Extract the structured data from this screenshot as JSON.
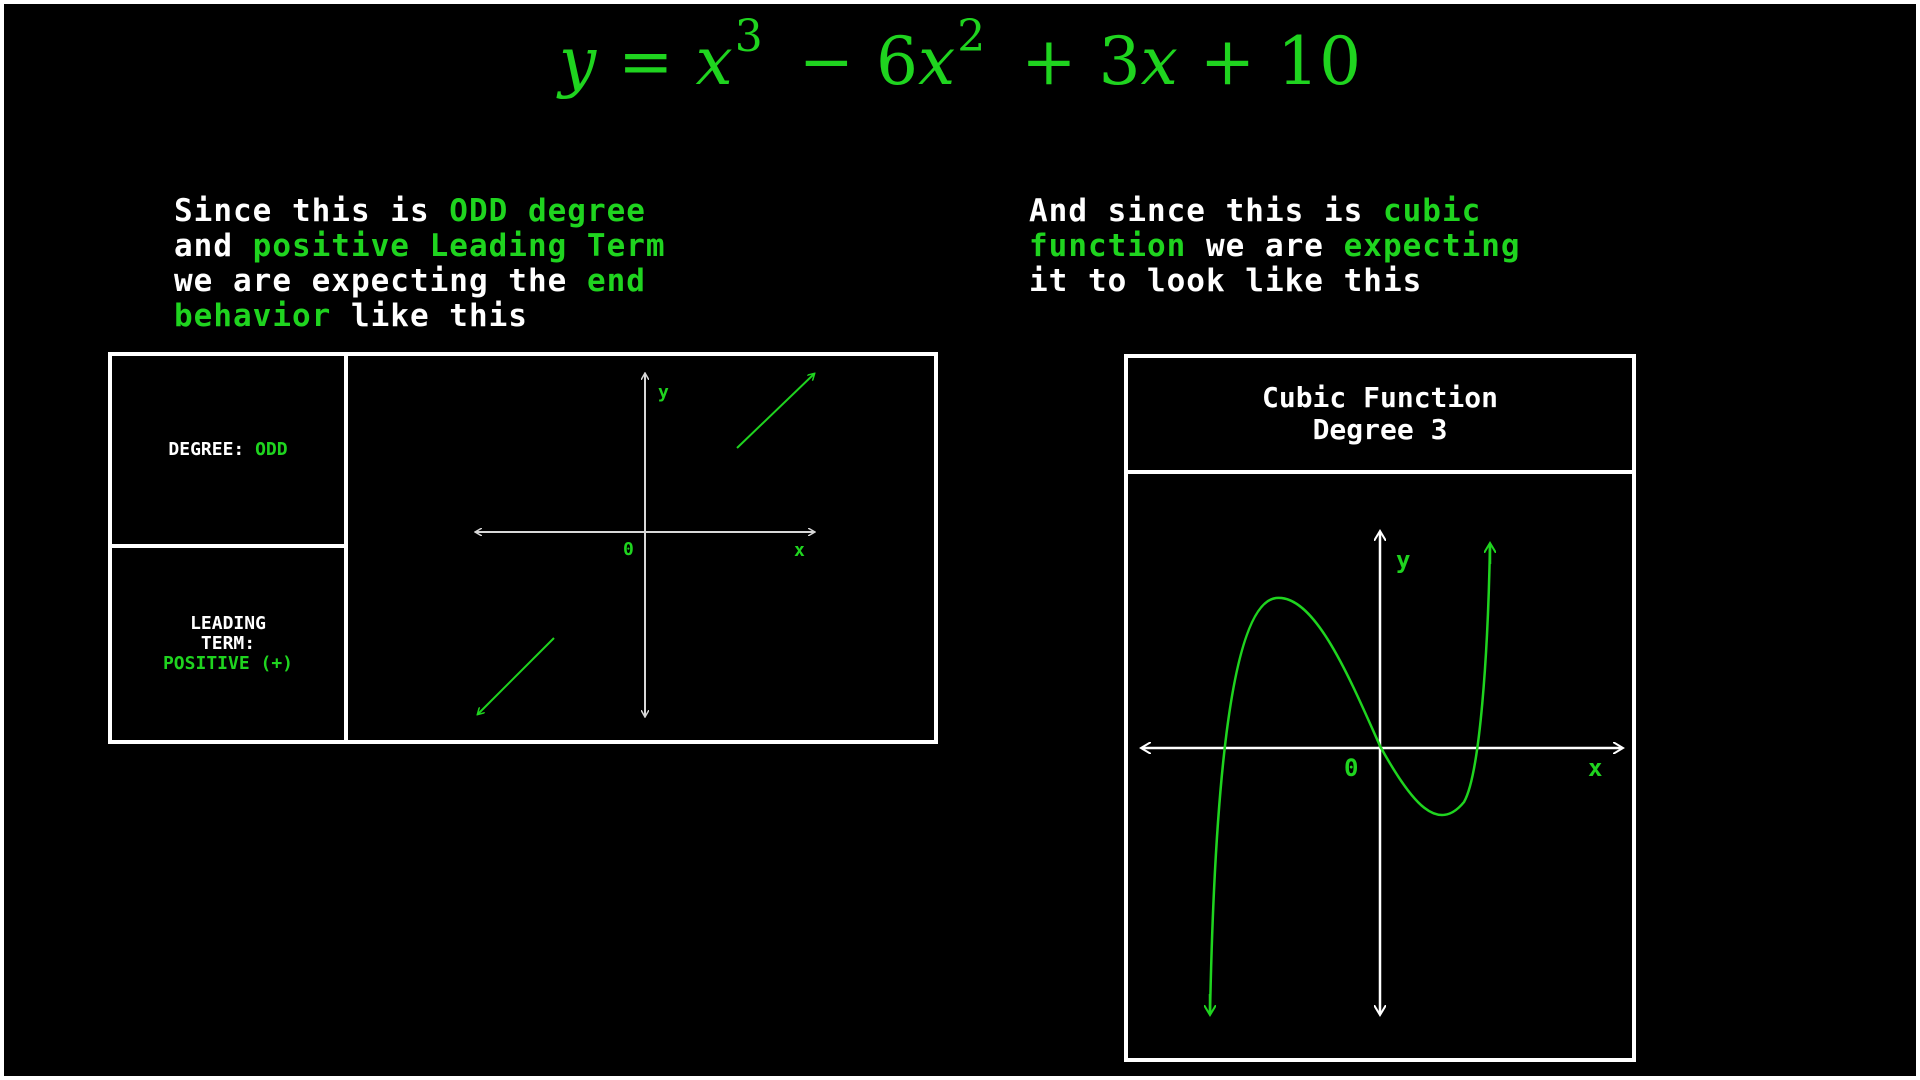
{
  "equation": {
    "y": "y",
    "eq": "=",
    "x1": "x",
    "e1": "3",
    "op1": "−",
    "c2": "6",
    "x2": "x",
    "e2": "2",
    "op2": "+",
    "c3": "3",
    "x3": "x",
    "op3": "+",
    "c4": "10"
  },
  "left_text": {
    "l1a": "Since this is ",
    "l1b": "ODD degree",
    "l2a": "and ",
    "l2b": "positive Leading Term",
    "l3a": "we are expecting the ",
    "l3b": "end",
    "l4a": "behavior",
    "l4b": " like this"
  },
  "right_text": {
    "l1a": "And since this is ",
    "l1b": "cubic",
    "l2a": "function",
    "l2b": " we are ",
    "l2c": "expecting",
    "l3a": "it to look like this"
  },
  "left_panel": {
    "degree_label": "DEGREE: ",
    "degree_value": "ODD",
    "leading_label_1": "LEADING",
    "leading_label_2": "TERM:",
    "leading_value": "POSITIVE (+)",
    "y_label": "y",
    "x_label": "x",
    "origin_label": "0"
  },
  "right_panel": {
    "title_1": "Cubic Function",
    "title_2": "Degree 3",
    "y_label": "y",
    "x_label": "x",
    "origin_label": "0"
  },
  "colors": {
    "background": "#000000",
    "accent_green": "#1fd41f",
    "text_white": "#ffffff"
  }
}
